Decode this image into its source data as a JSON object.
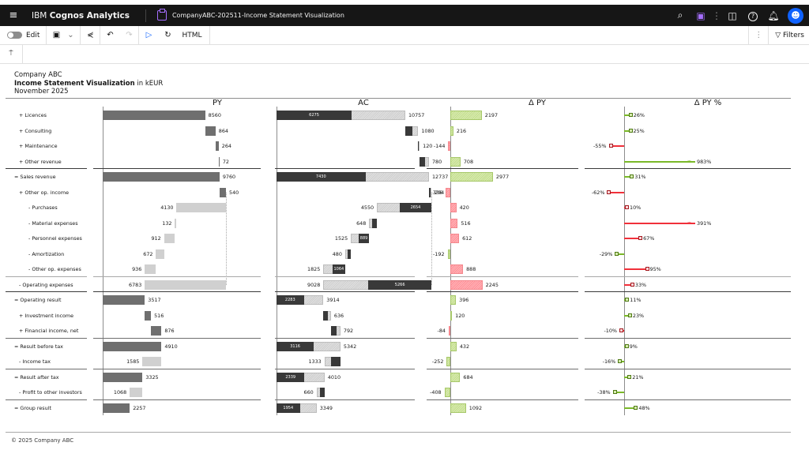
{
  "topbar": {
    "menu_icon": "≡",
    "brand_prefix": "IBM ",
    "brand_name": "Cognos Analytics",
    "doc_title": "CompanyABC-202511-Income Statement Visualization",
    "icons": {
      "search": "⌕",
      "chat": "▭",
      "more": "⋮",
      "preview": "◙",
      "help": "?",
      "notifications": "♫",
      "avatar": "ꓤ"
    }
  },
  "toolbar": {
    "edit_label": "Edit",
    "save_icon": "🖫",
    "save_chevron": "⌄",
    "share_icon": "⋞",
    "undo_icon": "↶",
    "redo_icon": "↷",
    "run_icon": "▷",
    "refresh_icon": "↻",
    "format_label": "HTML",
    "more_icon": "⋮",
    "filters_icon": "▽",
    "filters_label": "Filters"
  },
  "subbar": {
    "icon": "⍑"
  },
  "report": {
    "company": "Company ABC",
    "title": "Income Statement Visualization",
    "unit": " in kEUR",
    "period": "November 2025",
    "footer": "© 2025 Company ABC"
  },
  "chart_data": {
    "type": "table",
    "title": "Income Statement Visualization in kEUR",
    "subtitle": "Company ABC — November 2025",
    "columns": [
      "PY",
      "AC",
      "Δ PY",
      "Δ PY %"
    ],
    "rows": [
      {
        "label": "+ Licences",
        "py": 8560,
        "ac": 10757,
        "ac_inner": 6275,
        "d_py": 2197,
        "d_py_pct": "26%"
      },
      {
        "label": "+ Consulting",
        "py": 864,
        "ac": 1080,
        "d_py": 216,
        "d_py_pct": "25%"
      },
      {
        "label": "+ Maintenance",
        "py": 264,
        "ac": 120,
        "d_py": -144,
        "d_py_pct": "-55%"
      },
      {
        "label": "+ Other revenue",
        "py": 72,
        "ac": 780,
        "d_py": 708,
        "d_py_pct": "983%"
      },
      {
        "label": "= Sales revenue",
        "py": 9760,
        "ac": 12737,
        "ac_inner": 7430,
        "d_py": 2977,
        "d_py_pct": "31%"
      },
      {
        "label": "+ Other op. income",
        "py": 540,
        "ac": 204,
        "d_py": -336,
        "d_py_pct": "-62%"
      },
      {
        "label": "- Purchases",
        "py": 4130,
        "ac": 4550,
        "ac_inner": 2654,
        "d_py": 420,
        "d_py_pct": "10%"
      },
      {
        "label": "- Material expenses",
        "py": 132,
        "ac": 648,
        "d_py": 516,
        "d_py_pct": "391%"
      },
      {
        "label": "- Personnel expenses",
        "py": 912,
        "ac": 1525,
        "ac_inner": 889,
        "d_py": 612,
        "d_py_pct": "67%"
      },
      {
        "label": "- Amortization",
        "py": 672,
        "ac": 480,
        "d_py": -192,
        "d_py_pct": "-29%"
      },
      {
        "label": "- Other op. expenses",
        "py": 936,
        "ac": 1825,
        "ac_inner": 1064,
        "d_py": 888,
        "d_py_pct": "95%"
      },
      {
        "label": "- Operating expenses",
        "py": 6783,
        "ac": 9028,
        "ac_inner": 5266,
        "d_py": 2245,
        "d_py_pct": "33%"
      },
      {
        "label": "= Operating result",
        "py": 3517,
        "ac": 3914,
        "ac_inner": 2283,
        "d_py": 396,
        "d_py_pct": "11%"
      },
      {
        "label": "+ Investment income",
        "py": 516,
        "ac": 636,
        "d_py": 120,
        "d_py_pct": "23%"
      },
      {
        "label": "+ Financial income, net",
        "py": 876,
        "ac": 792,
        "d_py": -84,
        "d_py_pct": "-10%"
      },
      {
        "label": "= Result before tax",
        "py": 4910,
        "ac": 5342,
        "ac_inner": 3116,
        "d_py": 432,
        "d_py_pct": "9%"
      },
      {
        "label": "- Income tax",
        "py": 1585,
        "ac": 1333,
        "d_py": -252,
        "d_py_pct": "-16%"
      },
      {
        "label": "= Result after tax",
        "py": 3325,
        "ac": 4010,
        "ac_inner": 2339,
        "d_py": 684,
        "d_py_pct": "21%"
      },
      {
        "label": "- Profit to other investors",
        "py": 1068,
        "ac": 660,
        "d_py": -408,
        "d_py_pct": "-38%"
      },
      {
        "label": "= Group result",
        "py": 2257,
        "ac": 3349,
        "ac_inner": 1954,
        "d_py": 1092,
        "d_py_pct": "48%"
      }
    ],
    "colors": {
      "py": "#6f6f6f",
      "py_cost": "#d0d0d0",
      "ac": "#393939",
      "positive": "#7ab828",
      "negative": "#f0303a"
    }
  }
}
